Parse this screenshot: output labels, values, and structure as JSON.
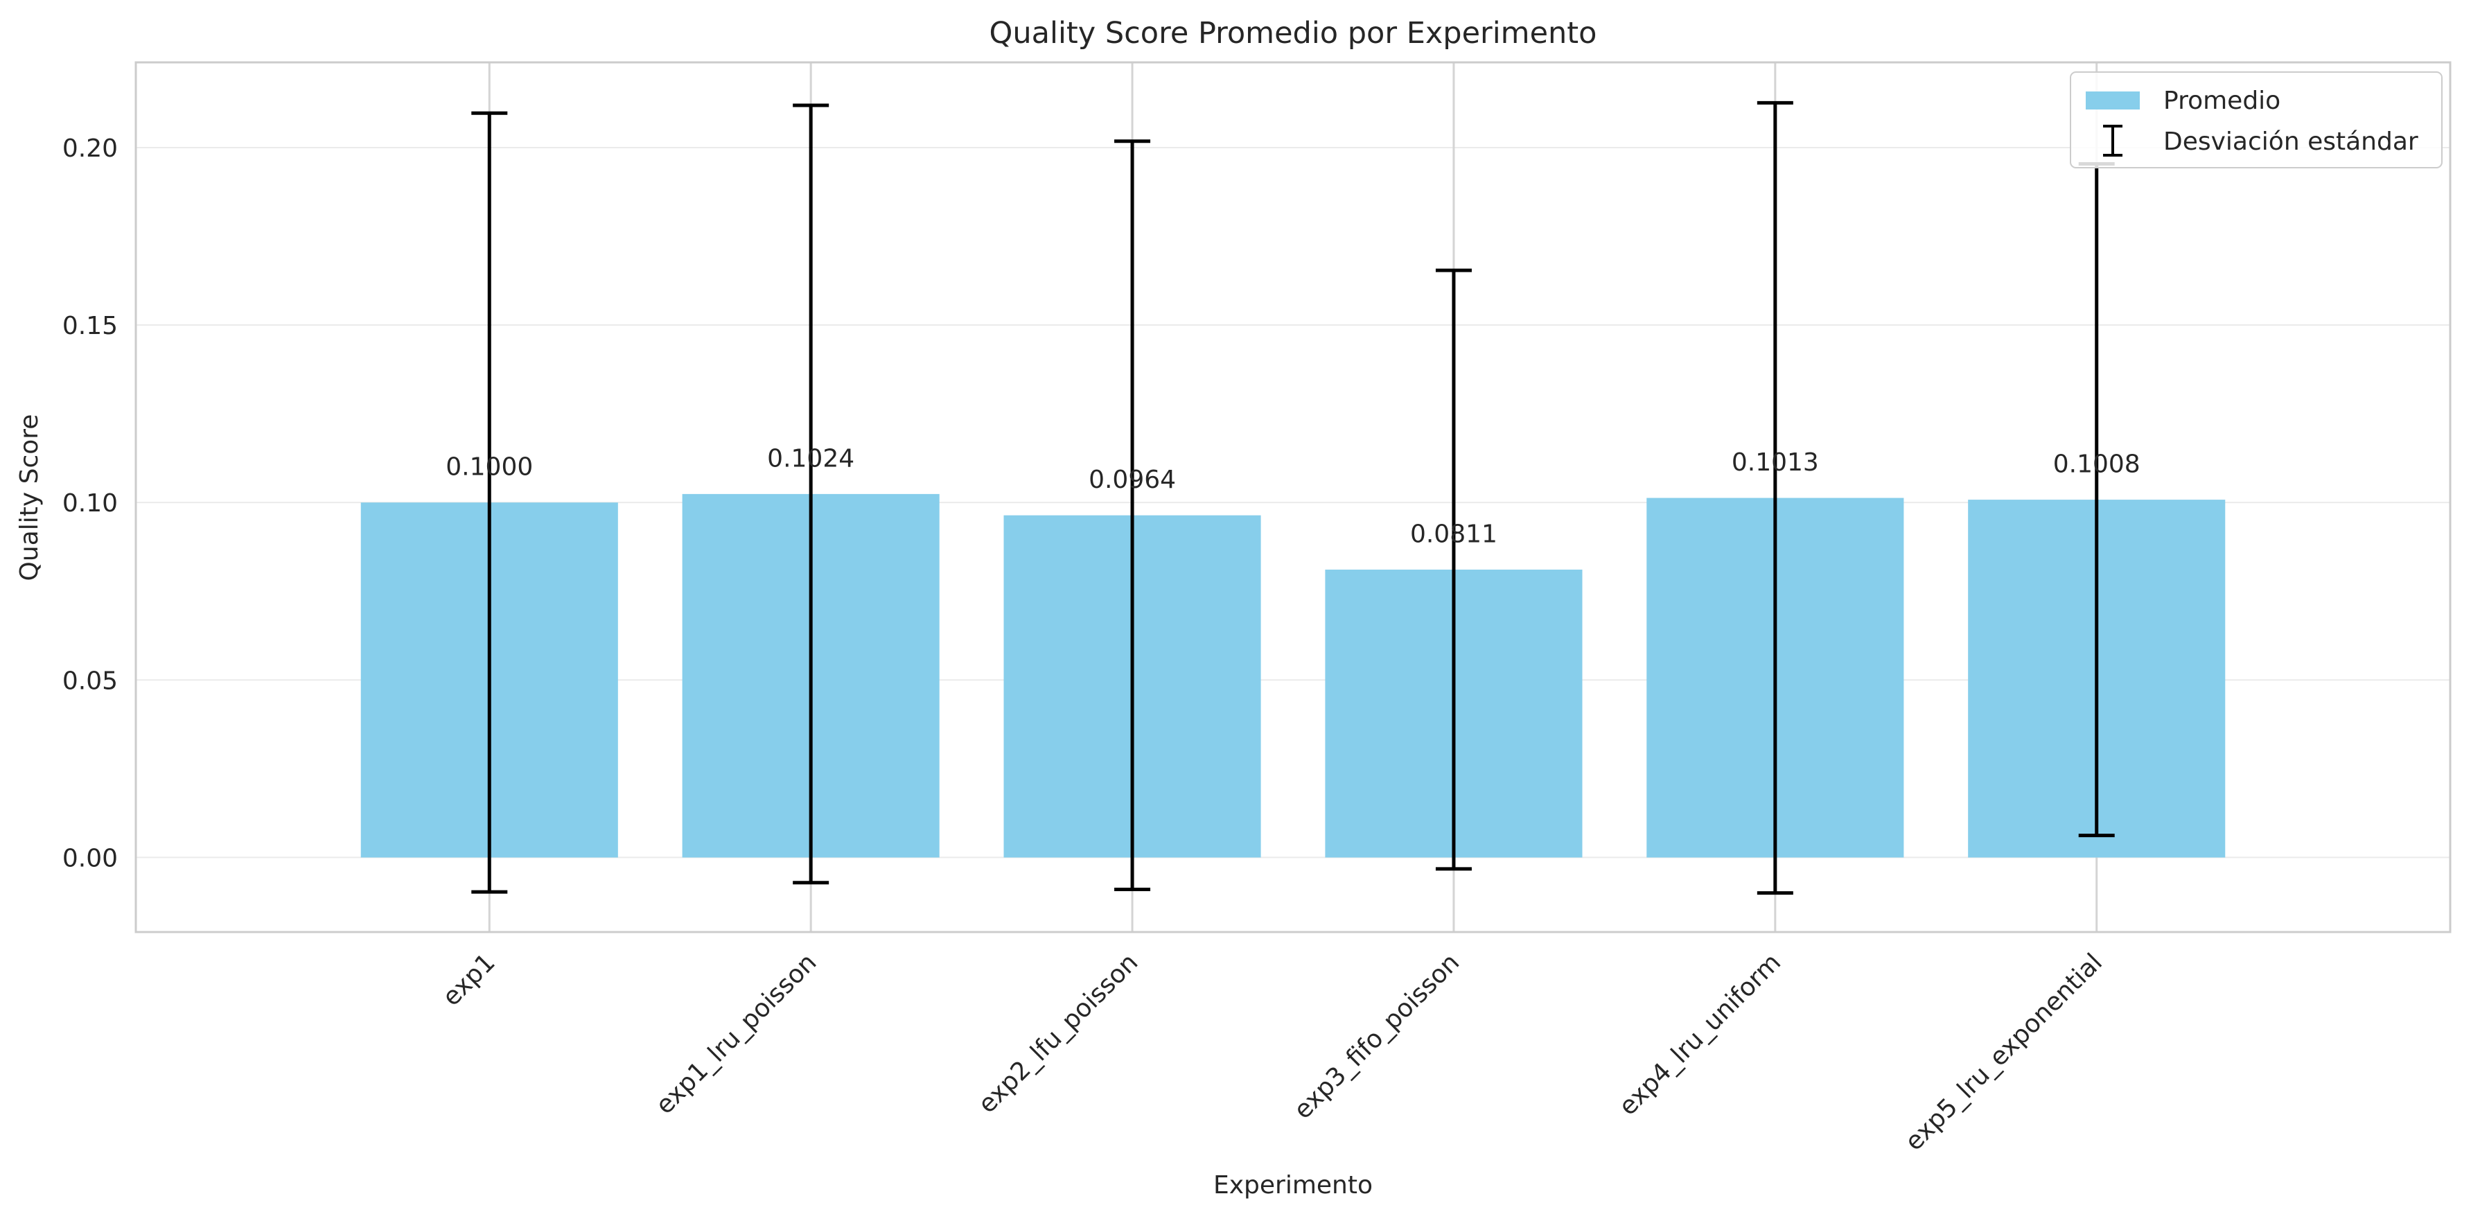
{
  "chart_data": {
    "type": "bar",
    "title": "Quality Score Promedio por Experimento",
    "xlabel": "Experimento",
    "ylabel": "Quality Score",
    "categories": [
      "exp1",
      "exp1_lru_poisson",
      "exp2_lfu_poisson",
      "exp3_fifo_poisson",
      "exp4_lru_uniform",
      "exp5_lru_exponential"
    ],
    "series": [
      {
        "name": "Promedio",
        "values": [
          0.1,
          0.1024,
          0.0964,
          0.0811,
          0.1013,
          0.1008
        ],
        "errors": [
          0.1097,
          0.1095,
          0.1054,
          0.0843,
          0.1113,
          0.0946
        ]
      }
    ],
    "error_legend": "Desviación estándar",
    "value_labels": [
      "0.1000",
      "0.1024",
      "0.0964",
      "0.0811",
      "0.1013",
      "0.1008"
    ],
    "yticks": [
      "0.00",
      "0.05",
      "0.10",
      "0.15",
      "0.20"
    ],
    "ytick_values": [
      0.0,
      0.05,
      0.1,
      0.15,
      0.2
    ],
    "ylim": [
      -0.021,
      0.224
    ],
    "grid": true,
    "legend_position": "top-right",
    "colors": {
      "bar": "#87CEEB",
      "error": "#000000",
      "grid": "#EBEBEB",
      "spine": "#CCCCCC",
      "text": "#262626"
    }
  }
}
